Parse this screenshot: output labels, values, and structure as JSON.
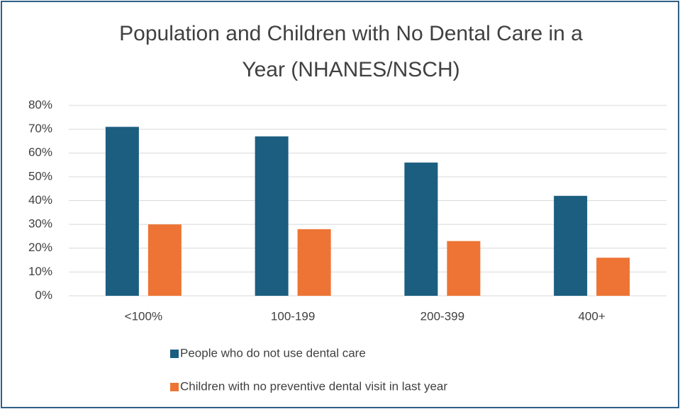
{
  "chart_data": {
    "type": "bar",
    "title": "Population and Children with No Dental Care in a Year (NHANES/NSCH)",
    "categories": [
      "<100%",
      "100-199",
      "200-399",
      "400+"
    ],
    "series": [
      {
        "name": "People who do not use dental care",
        "color": "#1b5e80",
        "values": [
          71,
          67,
          56,
          42
        ]
      },
      {
        "name": "Children with no preventive dental visit in last year",
        "color": "#ed7434",
        "values": [
          30,
          28,
          23,
          16
        ]
      }
    ],
    "ylim": [
      0,
      80
    ],
    "yticks": [
      {
        "value": 0,
        "label": "0%"
      },
      {
        "value": 10,
        "label": "10%"
      },
      {
        "value": 20,
        "label": "20%"
      },
      {
        "value": 30,
        "label": "30%"
      },
      {
        "value": 40,
        "label": "40%"
      },
      {
        "value": 50,
        "label": "50%"
      },
      {
        "value": 60,
        "label": "60%"
      },
      {
        "value": 70,
        "label": "70%"
      },
      {
        "value": 80,
        "label": "80%"
      }
    ],
    "grid": true,
    "legend": "bottom"
  }
}
